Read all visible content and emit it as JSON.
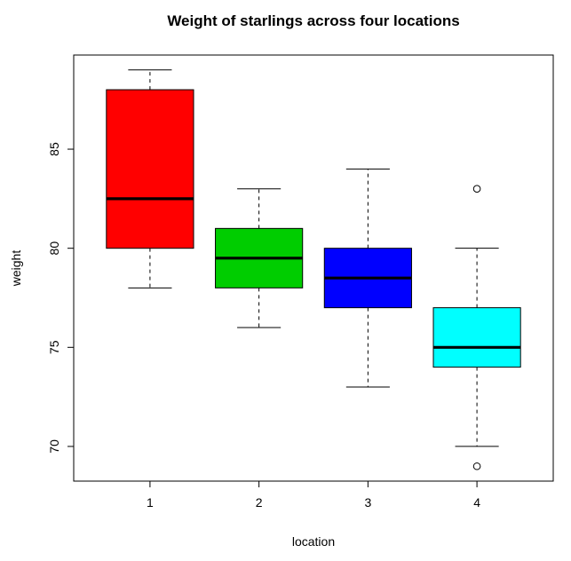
{
  "chart_data": {
    "type": "boxplot",
    "title": "Weight of starlings across four locations",
    "xlabel": "location",
    "ylabel": "weight",
    "ylim": [
      68.25,
      89.75
    ],
    "yticks": [
      70,
      75,
      80,
      85
    ],
    "grid": false,
    "categories": [
      "1",
      "2",
      "3",
      "4"
    ],
    "boxes": [
      {
        "category": "1",
        "color": "#ff0000",
        "whisker_low": 78,
        "q1": 80,
        "median": 82.5,
        "q3": 88,
        "whisker_high": 89,
        "outliers": []
      },
      {
        "category": "2",
        "color": "#00cd00",
        "whisker_low": 76,
        "q1": 78,
        "median": 79.5,
        "q3": 81,
        "whisker_high": 83,
        "outliers": []
      },
      {
        "category": "3",
        "color": "#0000ff",
        "whisker_low": 73,
        "q1": 77,
        "median": 78.5,
        "q3": 80,
        "whisker_high": 84,
        "outliers": []
      },
      {
        "category": "4",
        "color": "#00ffff",
        "whisker_low": 70,
        "q1": 74,
        "median": 75,
        "q3": 77,
        "whisker_high": 80,
        "outliers": [
          69,
          83
        ]
      }
    ]
  }
}
